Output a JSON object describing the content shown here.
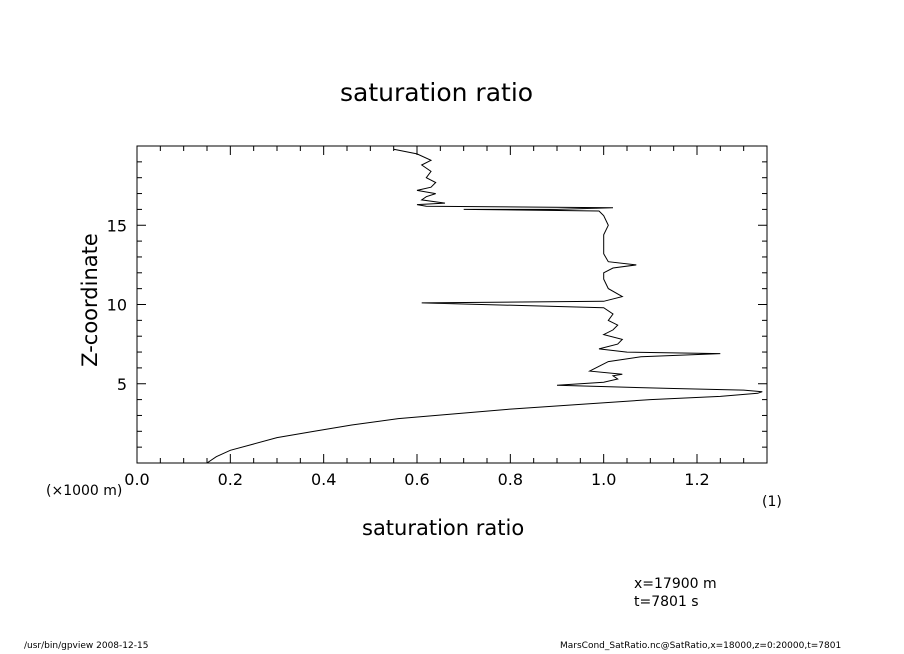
{
  "chart_data": {
    "type": "line",
    "title": "saturation ratio",
    "xlabel": "saturation ratio",
    "ylabel": "Z-coordinate",
    "y_unit_label": "(×1000 m)",
    "x_scale_label": "(1)",
    "xlim": [
      0.0,
      1.35
    ],
    "ylim": [
      0,
      20
    ],
    "x_ticks": [
      "0.0",
      "0.2",
      "0.4",
      "0.6",
      "0.8",
      "1.0",
      "1.2"
    ],
    "y_ticks": [
      "5",
      "10",
      "15"
    ],
    "grid": false,
    "series": [
      {
        "points": [
          [
            0.15,
            0.0
          ],
          [
            0.17,
            0.4
          ],
          [
            0.2,
            0.8
          ],
          [
            0.25,
            1.2
          ],
          [
            0.3,
            1.6
          ],
          [
            0.38,
            2.0
          ],
          [
            0.46,
            2.4
          ],
          [
            0.56,
            2.8
          ],
          [
            0.68,
            3.1
          ],
          [
            0.8,
            3.4
          ],
          [
            0.95,
            3.7
          ],
          [
            1.1,
            4.0
          ],
          [
            1.25,
            4.2
          ],
          [
            1.33,
            4.4
          ],
          [
            1.34,
            4.5
          ],
          [
            1.3,
            4.6
          ],
          [
            1.15,
            4.7
          ],
          [
            0.9,
            4.9
          ],
          [
            1.0,
            5.1
          ],
          [
            1.03,
            5.3
          ],
          [
            1.02,
            5.5
          ],
          [
            1.04,
            5.6
          ],
          [
            0.97,
            5.8
          ],
          [
            0.99,
            6.1
          ],
          [
            1.01,
            6.4
          ],
          [
            1.08,
            6.7
          ],
          [
            1.25,
            6.9
          ],
          [
            1.05,
            7.0
          ],
          [
            0.99,
            7.2
          ],
          [
            1.03,
            7.5
          ],
          [
            1.04,
            7.8
          ],
          [
            1.0,
            8.1
          ],
          [
            1.02,
            8.4
          ],
          [
            1.03,
            8.7
          ],
          [
            1.01,
            9.0
          ],
          [
            1.02,
            9.4
          ],
          [
            1.0,
            9.8
          ],
          [
            0.61,
            10.1
          ],
          [
            1.0,
            10.2
          ],
          [
            1.04,
            10.5
          ],
          [
            1.01,
            11.0
          ],
          [
            1.0,
            11.6
          ],
          [
            1.0,
            12.0
          ],
          [
            1.02,
            12.3
          ],
          [
            1.07,
            12.5
          ],
          [
            1.01,
            12.7
          ],
          [
            1.0,
            13.2
          ],
          [
            1.0,
            13.8
          ],
          [
            1.0,
            14.4
          ],
          [
            1.01,
            15.0
          ],
          [
            1.0,
            15.6
          ],
          [
            0.99,
            15.9
          ],
          [
            0.7,
            16.0
          ],
          [
            0.9,
            16.0
          ],
          [
            1.02,
            16.1
          ],
          [
            0.62,
            16.2
          ],
          [
            0.6,
            16.3
          ],
          [
            0.66,
            16.4
          ],
          [
            0.61,
            16.6
          ],
          [
            0.62,
            16.8
          ],
          [
            0.64,
            17.0
          ],
          [
            0.6,
            17.2
          ],
          [
            0.63,
            17.4
          ],
          [
            0.64,
            17.7
          ],
          [
            0.62,
            18.0
          ],
          [
            0.63,
            18.4
          ],
          [
            0.61,
            18.8
          ],
          [
            0.63,
            19.1
          ],
          [
            0.6,
            19.5
          ],
          [
            0.55,
            19.8
          ]
        ]
      }
    ]
  },
  "annotations": {
    "x_position": "x=17900  m",
    "time": "t=7801  s"
  },
  "footer": {
    "program": "/usr/bin/gpview   2008-12-15",
    "source": "MarsCond_SatRatio.nc@SatRatio,x=18000,z=0:20000,t=7801"
  },
  "colors": {
    "line": "#000000",
    "background": "#ffffff"
  }
}
